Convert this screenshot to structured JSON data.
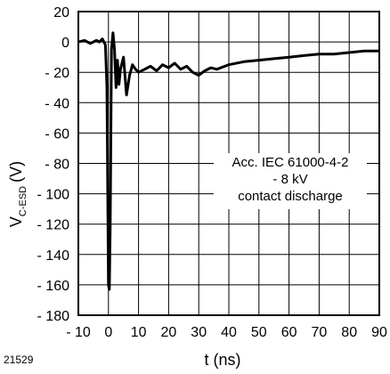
{
  "figure_id": "21529",
  "chart_data": {
    "type": "line",
    "xlabel": "t (ns)",
    "ylabel_main": "V",
    "ylabel_sub": "C-ESD",
    "ylabel_unit": "(V)",
    "xlim": [
      -10,
      90
    ],
    "ylim": [
      -180,
      20
    ],
    "x_ticks": [
      -10,
      0,
      10,
      20,
      30,
      40,
      50,
      60,
      70,
      80,
      90
    ],
    "x_tick_labels": [
      "- 10",
      "0",
      "10",
      "20",
      "30",
      "40",
      "50",
      "60",
      "70",
      "80",
      "90"
    ],
    "y_ticks": [
      20,
      0,
      -20,
      -40,
      -60,
      -80,
      -100,
      -120,
      -140,
      -160,
      -180
    ],
    "y_tick_labels": [
      "20",
      "0",
      "- 20",
      "- 40",
      "- 60",
      "- 80",
      "- 100",
      "- 120",
      "- 140",
      "- 160",
      "- 180"
    ],
    "grid": true,
    "annotation": [
      "Acc. IEC 61000-4-2",
      "- 8 kV",
      "contact discharge"
    ],
    "series": [
      {
        "color": "#000000",
        "x": [
          -10,
          -8,
          -6,
          -4,
          -3,
          -2,
          -1,
          -0.5,
          0,
          0.3,
          0.6,
          1,
          1.5,
          2,
          2.5,
          3,
          3.5,
          4,
          5,
          6,
          7,
          8,
          9,
          10,
          12,
          14,
          16,
          18,
          20,
          22,
          24,
          26,
          28,
          30,
          32,
          34,
          36,
          40,
          45,
          50,
          55,
          60,
          65,
          70,
          75,
          80,
          85,
          90
        ],
        "y": [
          0,
          1,
          -1,
          1,
          0,
          2,
          -2,
          -30,
          -160,
          -163,
          -120,
          -5,
          6,
          -5,
          -30,
          -12,
          -28,
          -18,
          -10,
          -35,
          -22,
          -15,
          -18,
          -20,
          -18,
          -16,
          -19,
          -15,
          -17,
          -14,
          -18,
          -16,
          -20,
          -22,
          -19,
          -17,
          -18,
          -15,
          -13,
          -12,
          -11,
          -10,
          -9,
          -8,
          -8,
          -7,
          -6,
          -6
        ]
      }
    ]
  }
}
